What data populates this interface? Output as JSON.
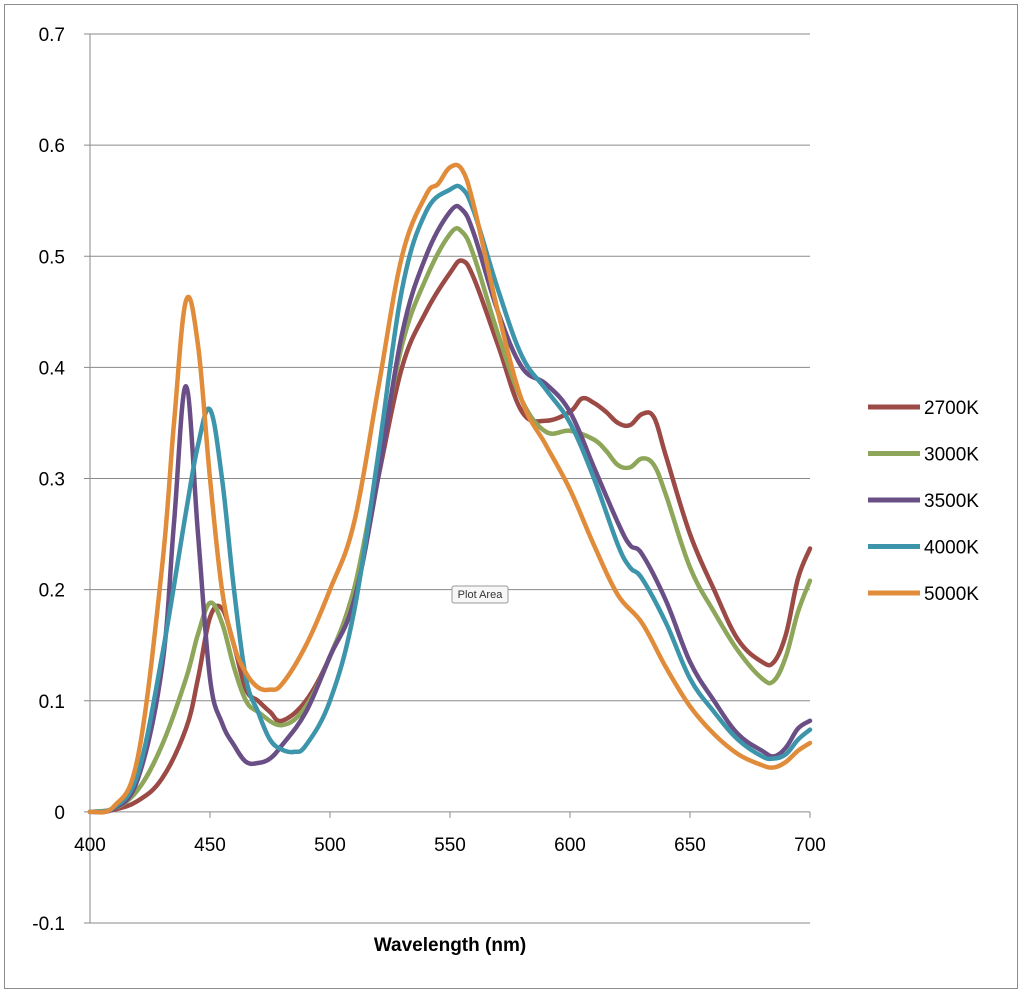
{
  "chart_data": {
    "type": "line",
    "title": "",
    "xlabel": "Wavelength (nm)",
    "ylabel": "",
    "xlim": [
      400,
      700
    ],
    "ylim": [
      -0.1,
      0.7
    ],
    "xticks": [
      "400",
      "450",
      "500",
      "550",
      "600",
      "650",
      "700"
    ],
    "yticks": [
      "-0.1",
      "0",
      "0.1",
      "0.2",
      "0.3",
      "0.4",
      "0.5",
      "0.6",
      "0.7"
    ],
    "grid": "horizontal",
    "legend_position": "right",
    "tooltip": "Plot Area",
    "series": [
      {
        "name": "2700K",
        "color": "#9b4a45",
        "points": [
          [
            400,
            0
          ],
          [
            410,
            0.002
          ],
          [
            420,
            0.01
          ],
          [
            430,
            0.03
          ],
          [
            440,
            0.075
          ],
          [
            445,
            0.12
          ],
          [
            450,
            0.175
          ],
          [
            455,
            0.183
          ],
          [
            460,
            0.15
          ],
          [
            465,
            0.11
          ],
          [
            470,
            0.1
          ],
          [
            475,
            0.09
          ],
          [
            480,
            0.082
          ],
          [
            490,
            0.1
          ],
          [
            500,
            0.14
          ],
          [
            510,
            0.2
          ],
          [
            520,
            0.3
          ],
          [
            530,
            0.4
          ],
          [
            540,
            0.45
          ],
          [
            550,
            0.485
          ],
          [
            555,
            0.496
          ],
          [
            560,
            0.48
          ],
          [
            570,
            0.42
          ],
          [
            580,
            0.36
          ],
          [
            590,
            0.352
          ],
          [
            600,
            0.36
          ],
          [
            605,
            0.372
          ],
          [
            610,
            0.368
          ],
          [
            615,
            0.36
          ],
          [
            620,
            0.35
          ],
          [
            625,
            0.348
          ],
          [
            630,
            0.358
          ],
          [
            635,
            0.355
          ],
          [
            640,
            0.32
          ],
          [
            650,
            0.25
          ],
          [
            660,
            0.2
          ],
          [
            670,
            0.155
          ],
          [
            680,
            0.135
          ],
          [
            685,
            0.135
          ],
          [
            690,
            0.16
          ],
          [
            695,
            0.21
          ],
          [
            700,
            0.237
          ]
        ]
      },
      {
        "name": "3000K",
        "color": "#8ea65a",
        "points": [
          [
            400,
            0
          ],
          [
            410,
            0.003
          ],
          [
            420,
            0.02
          ],
          [
            430,
            0.06
          ],
          [
            440,
            0.12
          ],
          [
            445,
            0.16
          ],
          [
            450,
            0.188
          ],
          [
            455,
            0.17
          ],
          [
            460,
            0.13
          ],
          [
            465,
            0.1
          ],
          [
            470,
            0.09
          ],
          [
            480,
            0.078
          ],
          [
            490,
            0.095
          ],
          [
            500,
            0.14
          ],
          [
            510,
            0.2
          ],
          [
            520,
            0.31
          ],
          [
            530,
            0.42
          ],
          [
            540,
            0.48
          ],
          [
            550,
            0.52
          ],
          [
            555,
            0.522
          ],
          [
            560,
            0.5
          ],
          [
            570,
            0.43
          ],
          [
            580,
            0.37
          ],
          [
            590,
            0.342
          ],
          [
            600,
            0.343
          ],
          [
            610,
            0.335
          ],
          [
            615,
            0.325
          ],
          [
            620,
            0.312
          ],
          [
            625,
            0.31
          ],
          [
            630,
            0.318
          ],
          [
            635,
            0.312
          ],
          [
            640,
            0.285
          ],
          [
            650,
            0.22
          ],
          [
            660,
            0.18
          ],
          [
            670,
            0.145
          ],
          [
            680,
            0.12
          ],
          [
            685,
            0.118
          ],
          [
            690,
            0.14
          ],
          [
            695,
            0.18
          ],
          [
            700,
            0.208
          ]
        ]
      },
      {
        "name": "3500K",
        "color": "#6a4f86",
        "points": [
          [
            400,
            0
          ],
          [
            410,
            0.003
          ],
          [
            420,
            0.03
          ],
          [
            430,
            0.13
          ],
          [
            435,
            0.26
          ],
          [
            440,
            0.383
          ],
          [
            445,
            0.25
          ],
          [
            450,
            0.12
          ],
          [
            455,
            0.08
          ],
          [
            460,
            0.06
          ],
          [
            465,
            0.045
          ],
          [
            470,
            0.044
          ],
          [
            475,
            0.048
          ],
          [
            480,
            0.06
          ],
          [
            490,
            0.09
          ],
          [
            500,
            0.14
          ],
          [
            510,
            0.19
          ],
          [
            520,
            0.3
          ],
          [
            530,
            0.43
          ],
          [
            540,
            0.5
          ],
          [
            550,
            0.54
          ],
          [
            555,
            0.542
          ],
          [
            560,
            0.52
          ],
          [
            570,
            0.45
          ],
          [
            580,
            0.4
          ],
          [
            590,
            0.385
          ],
          [
            600,
            0.36
          ],
          [
            610,
            0.31
          ],
          [
            620,
            0.26
          ],
          [
            625,
            0.24
          ],
          [
            630,
            0.232
          ],
          [
            640,
            0.19
          ],
          [
            650,
            0.135
          ],
          [
            660,
            0.1
          ],
          [
            670,
            0.07
          ],
          [
            680,
            0.055
          ],
          [
            685,
            0.05
          ],
          [
            690,
            0.058
          ],
          [
            695,
            0.075
          ],
          [
            700,
            0.082
          ]
        ]
      },
      {
        "name": "4000K",
        "color": "#3d95ab",
        "points": [
          [
            400,
            0
          ],
          [
            410,
            0.004
          ],
          [
            420,
            0.035
          ],
          [
            430,
            0.14
          ],
          [
            440,
            0.27
          ],
          [
            445,
            0.33
          ],
          [
            450,
            0.362
          ],
          [
            455,
            0.3
          ],
          [
            460,
            0.2
          ],
          [
            465,
            0.12
          ],
          [
            470,
            0.09
          ],
          [
            475,
            0.065
          ],
          [
            480,
            0.056
          ],
          [
            485,
            0.054
          ],
          [
            490,
            0.06
          ],
          [
            500,
            0.1
          ],
          [
            510,
            0.18
          ],
          [
            520,
            0.32
          ],
          [
            530,
            0.47
          ],
          [
            540,
            0.54
          ],
          [
            550,
            0.56
          ],
          [
            555,
            0.561
          ],
          [
            560,
            0.54
          ],
          [
            570,
            0.47
          ],
          [
            580,
            0.41
          ],
          [
            590,
            0.38
          ],
          [
            600,
            0.35
          ],
          [
            610,
            0.3
          ],
          [
            620,
            0.24
          ],
          [
            625,
            0.22
          ],
          [
            630,
            0.21
          ],
          [
            640,
            0.17
          ],
          [
            650,
            0.12
          ],
          [
            660,
            0.09
          ],
          [
            670,
            0.065
          ],
          [
            680,
            0.05
          ],
          [
            685,
            0.048
          ],
          [
            690,
            0.052
          ],
          [
            695,
            0.065
          ],
          [
            700,
            0.074
          ]
        ]
      },
      {
        "name": "5000K",
        "color": "#e08c3a",
        "points": [
          [
            400,
            0
          ],
          [
            410,
            0.005
          ],
          [
            420,
            0.05
          ],
          [
            430,
            0.22
          ],
          [
            435,
            0.35
          ],
          [
            440,
            0.46
          ],
          [
            445,
            0.42
          ],
          [
            450,
            0.3
          ],
          [
            455,
            0.2
          ],
          [
            460,
            0.15
          ],
          [
            465,
            0.125
          ],
          [
            470,
            0.112
          ],
          [
            475,
            0.11
          ],
          [
            480,
            0.115
          ],
          [
            490,
            0.15
          ],
          [
            500,
            0.2
          ],
          [
            510,
            0.26
          ],
          [
            520,
            0.38
          ],
          [
            530,
            0.5
          ],
          [
            540,
            0.555
          ],
          [
            545,
            0.565
          ],
          [
            550,
            0.58
          ],
          [
            555,
            0.578
          ],
          [
            560,
            0.545
          ],
          [
            570,
            0.45
          ],
          [
            580,
            0.37
          ],
          [
            590,
            0.33
          ],
          [
            600,
            0.29
          ],
          [
            610,
            0.24
          ],
          [
            620,
            0.195
          ],
          [
            630,
            0.17
          ],
          [
            640,
            0.13
          ],
          [
            650,
            0.095
          ],
          [
            660,
            0.07
          ],
          [
            670,
            0.052
          ],
          [
            680,
            0.042
          ],
          [
            685,
            0.04
          ],
          [
            690,
            0.045
          ],
          [
            695,
            0.055
          ],
          [
            700,
            0.062
          ]
        ]
      }
    ]
  }
}
